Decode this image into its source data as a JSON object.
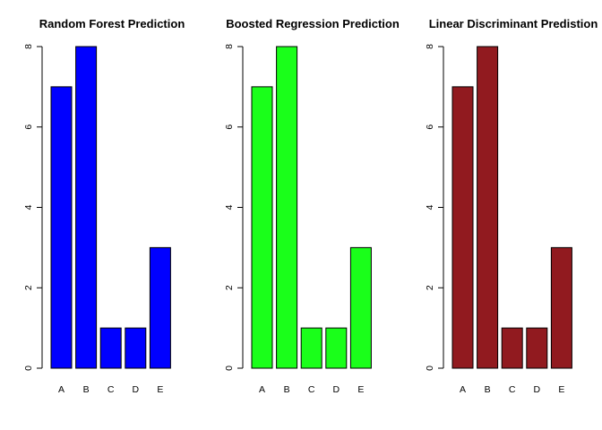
{
  "chart_data": [
    {
      "type": "bar",
      "title": "Random Forest Prediction",
      "categories": [
        "A",
        "B",
        "C",
        "D",
        "E"
      ],
      "values": [
        7,
        8,
        1,
        1,
        3
      ],
      "yticks": [
        "0",
        "2",
        "4",
        "6",
        "8"
      ],
      "ylim": [
        0,
        8
      ],
      "xlabel": "",
      "ylabel": "",
      "grid": false,
      "color": "#0000FF"
    },
    {
      "type": "bar",
      "title": "Boosted Regression Prediction",
      "categories": [
        "A",
        "B",
        "C",
        "D",
        "E"
      ],
      "values": [
        7,
        8,
        1,
        1,
        3
      ],
      "yticks": [
        "0",
        "2",
        "4",
        "6",
        "8"
      ],
      "ylim": [
        0,
        8
      ],
      "xlabel": "",
      "ylabel": "",
      "grid": false,
      "color": "#1AFF1A"
    },
    {
      "type": "bar",
      "title": "Linear Discriminant Predistion",
      "categories": [
        "A",
        "B",
        "C",
        "D",
        "E"
      ],
      "values": [
        7,
        8,
        1,
        1,
        3
      ],
      "yticks": [
        "0",
        "2",
        "4",
        "6",
        "8"
      ],
      "ylim": [
        0,
        8
      ],
      "xlabel": "",
      "ylabel": "",
      "grid": false,
      "color": "#911A1F"
    }
  ]
}
